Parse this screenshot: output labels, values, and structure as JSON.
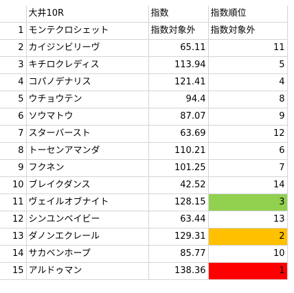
{
  "header": {
    "no": "",
    "name": "大井10R",
    "score": "指数",
    "rank": "指数順位"
  },
  "rows": [
    {
      "no": "1",
      "name": "モンテクロシェット",
      "score": "指数対象外",
      "rank": "指数対象外",
      "highlight": ""
    },
    {
      "no": "2",
      "name": "カイジンビリーヴ",
      "score": "65.11",
      "rank": "11",
      "highlight": ""
    },
    {
      "no": "3",
      "name": "キチロクレディス",
      "score": "113.94",
      "rank": "5",
      "highlight": ""
    },
    {
      "no": "4",
      "name": "コパノデナリス",
      "score": "121.41",
      "rank": "4",
      "highlight": ""
    },
    {
      "no": "5",
      "name": "ウチョウテン",
      "score": "94.4",
      "rank": "8",
      "highlight": ""
    },
    {
      "no": "6",
      "name": "ソウマトウ",
      "score": "87.07",
      "rank": "9",
      "highlight": ""
    },
    {
      "no": "7",
      "name": "スターバースト",
      "score": "63.69",
      "rank": "12",
      "highlight": ""
    },
    {
      "no": "8",
      "name": "トーセンアマンダ",
      "score": "110.21",
      "rank": "6",
      "highlight": ""
    },
    {
      "no": "9",
      "name": "フクネン",
      "score": "101.25",
      "rank": "7",
      "highlight": ""
    },
    {
      "no": "10",
      "name": "ブレイクダンス",
      "score": "42.52",
      "rank": "14",
      "highlight": ""
    },
    {
      "no": "11",
      "name": "ヴェイルオブナイト",
      "score": "128.15",
      "rank": "3",
      "highlight": "#92d050"
    },
    {
      "no": "12",
      "name": "シンユンベイビー",
      "score": "63.44",
      "rank": "13",
      "highlight": ""
    },
    {
      "no": "13",
      "name": "ダノンエクレール",
      "score": "129.31",
      "rank": "2",
      "highlight": "#ffc000"
    },
    {
      "no": "14",
      "name": "サカベンホープ",
      "score": "85.77",
      "rank": "10",
      "highlight": ""
    },
    {
      "no": "15",
      "name": "アルドゥマン",
      "score": "138.36",
      "rank": "1",
      "highlight": "#ff0000"
    }
  ]
}
